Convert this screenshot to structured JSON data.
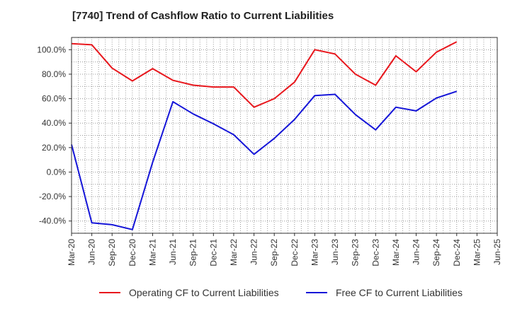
{
  "chart_data": {
    "type": "line",
    "title": "[7740]  Trend of Cashflow Ratio to Current Liabilities",
    "xlabel": "",
    "ylabel": "",
    "x": [
      "Mar-20",
      "Jun-20",
      "Sep-20",
      "Dec-20",
      "Mar-21",
      "Jun-21",
      "Sep-21",
      "Dec-21",
      "Mar-22",
      "Jun-22",
      "Sep-22",
      "Dec-22",
      "Mar-23",
      "Jun-23",
      "Sep-23",
      "Dec-23",
      "Mar-24",
      "Jun-24",
      "Sep-24",
      "Dec-24",
      "Mar-25",
      "Jun-25"
    ],
    "ylim": [
      -50,
      110
    ],
    "yticks": [
      -40,
      -20,
      0,
      20,
      40,
      60,
      80,
      100
    ],
    "ytick_labels": [
      "-40.0%",
      "-20.0%",
      "0.0%",
      "20.0%",
      "40.0%",
      "60.0%",
      "80.0%",
      "100.0%"
    ],
    "grid": true,
    "legend_position": "bottom",
    "series": [
      {
        "name": "Operating CF to Current Liabilities",
        "color": "#e8171d",
        "values": [
          105.0,
          104.0,
          85.0,
          74.5,
          84.5,
          75.0,
          71.0,
          69.5,
          69.5,
          53.0,
          60.0,
          73.5,
          100.0,
          96.5,
          80.0,
          71.0,
          95.0,
          82.0,
          98.0,
          106.5,
          null,
          null
        ]
      },
      {
        "name": "Free CF to Current Liabilities",
        "color": "#1515d8",
        "values": [
          22.5,
          -41.5,
          -43.0,
          -47.0,
          8.0,
          57.5,
          47.5,
          39.5,
          30.5,
          14.5,
          27.5,
          43.0,
          62.5,
          63.5,
          47.0,
          34.5,
          53.0,
          50.0,
          60.5,
          66.0,
          null,
          null
        ]
      }
    ]
  }
}
